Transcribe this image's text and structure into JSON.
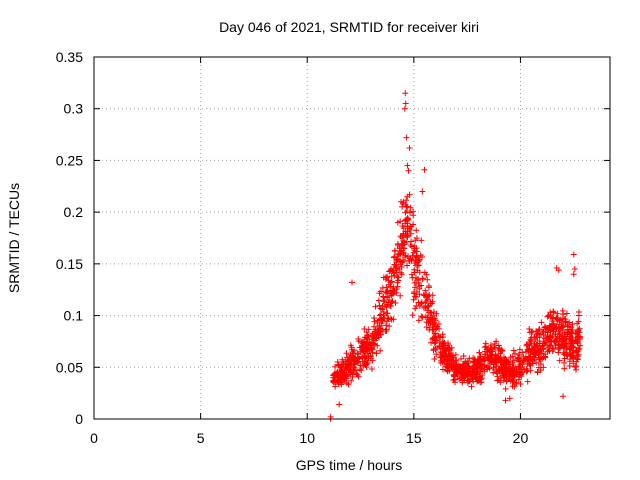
{
  "chart_data": {
    "type": "scatter",
    "title": "Day 046 of 2021, SRMTID for receiver kiri",
    "xlabel": "GPS time / hours",
    "ylabel": "SRMTID / TECUs",
    "xlim": [
      0,
      24.2
    ],
    "ylim": [
      0,
      0.35
    ],
    "grid": true,
    "marker": "+",
    "color": "#ff0000",
    "x_ticks": [
      0,
      5,
      10,
      15,
      20
    ],
    "x_tick_labels": [
      "0",
      "5",
      "10",
      "15",
      "20"
    ],
    "y_ticks": [
      0,
      0.05,
      0.1,
      0.15,
      0.2,
      0.25,
      0.3,
      0.35
    ],
    "y_tick_labels": [
      "0",
      "0.05",
      "0.1",
      "0.15",
      "0.2",
      "0.25",
      "0.3",
      "0.35"
    ],
    "series": [
      {
        "name": "SRMTID",
        "envelope": {
          "x": [
            11.2,
            11.5,
            12.0,
            12.5,
            13.0,
            13.5,
            14.0,
            14.5,
            14.7,
            15.0,
            15.5,
            16.0,
            16.5,
            17.0,
            17.5,
            18.0,
            18.5,
            19.0,
            19.5,
            20.0,
            20.5,
            21.0,
            21.5,
            22.0,
            22.5,
            22.8
          ],
          "median": [
            0.04,
            0.042,
            0.05,
            0.062,
            0.07,
            0.1,
            0.13,
            0.18,
            0.19,
            0.15,
            0.12,
            0.08,
            0.06,
            0.05,
            0.045,
            0.048,
            0.062,
            0.055,
            0.045,
            0.05,
            0.065,
            0.07,
            0.09,
            0.08,
            0.07,
            0.08
          ],
          "spread": [
            0.015,
            0.02,
            0.025,
            0.03,
            0.03,
            0.04,
            0.05,
            0.06,
            0.06,
            0.06,
            0.05,
            0.04,
            0.025,
            0.02,
            0.02,
            0.02,
            0.02,
            0.025,
            0.02,
            0.025,
            0.03,
            0.03,
            0.035,
            0.035,
            0.03,
            0.03
          ]
        },
        "points": [
          [
            11.1,
            0.0
          ],
          [
            11.1,
            0.002
          ],
          [
            11.5,
            0.014
          ],
          [
            14.6,
            0.315
          ],
          [
            14.62,
            0.305
          ],
          [
            14.58,
            0.3
          ],
          [
            14.65,
            0.272
          ],
          [
            14.8,
            0.262
          ],
          [
            14.7,
            0.245
          ],
          [
            14.75,
            0.24
          ],
          [
            15.5,
            0.241
          ],
          [
            15.4,
            0.22
          ],
          [
            14.4,
            0.21
          ],
          [
            12.1,
            0.132
          ],
          [
            21.7,
            0.146
          ],
          [
            21.8,
            0.144
          ],
          [
            22.5,
            0.159
          ],
          [
            22.55,
            0.145
          ],
          [
            22.5,
            0.14
          ],
          [
            22.0,
            0.022
          ],
          [
            19.3,
            0.018
          ],
          [
            19.5,
            0.02
          ]
        ],
        "n_points": 1500
      }
    ]
  }
}
